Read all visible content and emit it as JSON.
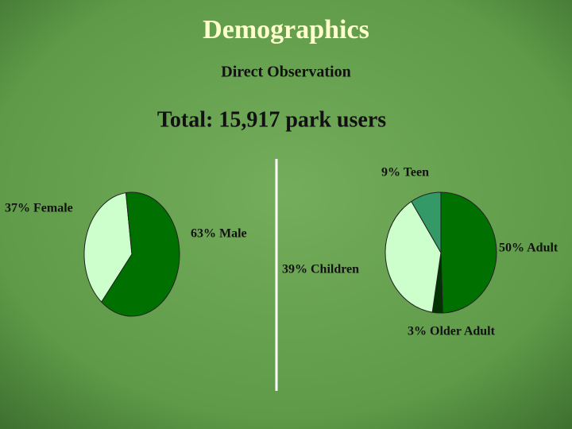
{
  "title": "Demographics",
  "subtitle": "Direct Observation",
  "total": "Total: 15,917 park users",
  "chart_data": [
    {
      "type": "pie",
      "values": [
        37,
        63
      ],
      "value_labels": [
        "37% Female",
        "63% Male"
      ],
      "colors": [
        "#ccffcc",
        "#007000"
      ]
    },
    {
      "type": "pie",
      "values": [
        50,
        3,
        39,
        9
      ],
      "value_labels": [
        "50% Adult",
        "3% Older Adult",
        "39% Children",
        "9% Teen"
      ],
      "colors": [
        "#007000",
        "#003300",
        "#ccffcc",
        "#339966"
      ]
    }
  ]
}
